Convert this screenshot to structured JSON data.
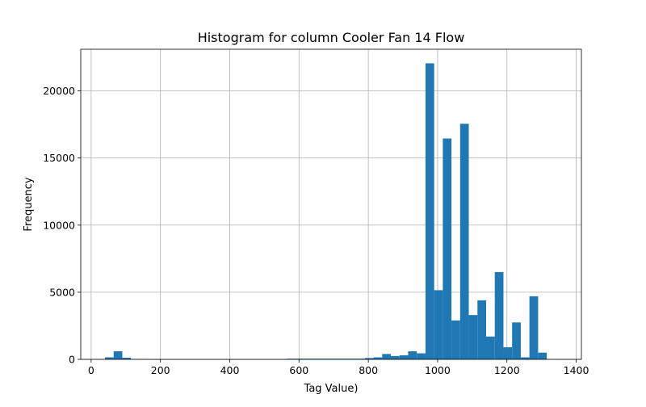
{
  "colors": {
    "bar": "#1f77b4",
    "grid": "#b0b0b0",
    "axis": "#000000",
    "background": "#ffffff"
  },
  "chart_data": {
    "type": "bar",
    "title": "Histogram for column Cooler Fan 14 Flow",
    "xlabel": "Tag Value)",
    "ylabel": "Frequency",
    "xlim": [
      -30,
      1415
    ],
    "ylim": [
      0,
      23100
    ],
    "grid": true,
    "x_ticks": [
      0,
      200,
      400,
      600,
      800,
      1000,
      1200,
      1400
    ],
    "y_ticks": [
      0,
      5000,
      10000,
      15000,
      20000
    ],
    "bin_edges": [
      40,
      65,
      90,
      115,
      140,
      165,
      190,
      215,
      240,
      265,
      290,
      315,
      340,
      365,
      390,
      415,
      440,
      465,
      490,
      515,
      540,
      565,
      590,
      615,
      640,
      665,
      690,
      715,
      740,
      765,
      790,
      815,
      840,
      865,
      890,
      915,
      940,
      965,
      990,
      1015,
      1040,
      1065,
      1090,
      1115,
      1140,
      1165,
      1190,
      1215,
      1240,
      1265,
      1290,
      1315,
      1340
    ],
    "counts": [
      150,
      600,
      120,
      20,
      10,
      5,
      5,
      5,
      5,
      5,
      5,
      5,
      5,
      5,
      5,
      5,
      5,
      5,
      5,
      5,
      5,
      50,
      50,
      50,
      50,
      50,
      50,
      50,
      50,
      50,
      100,
      150,
      400,
      250,
      300,
      600,
      450,
      22050,
      5150,
      16450,
      2900,
      17550,
      3300,
      4400,
      1700,
      6500,
      900,
      2750,
      150,
      4700,
      500,
      0
    ]
  }
}
